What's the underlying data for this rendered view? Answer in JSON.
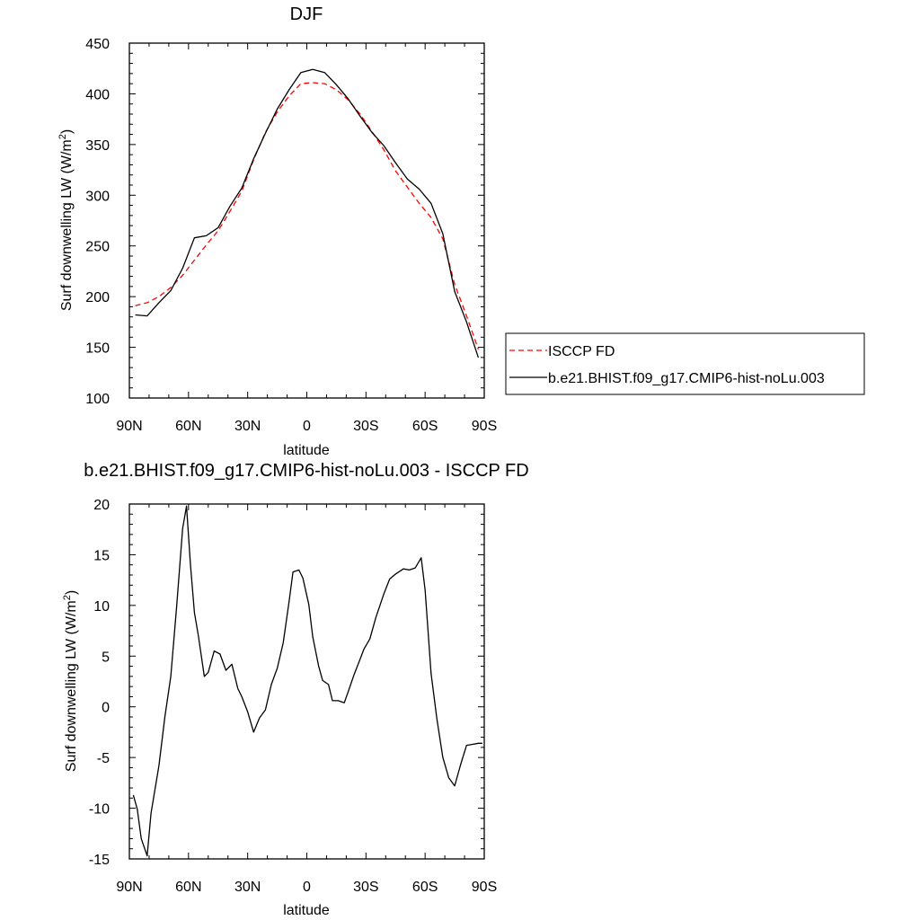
{
  "chart_data": [
    {
      "type": "line",
      "title": "DJF",
      "xlabel": "latitude",
      "ylabel": "Surf downwelling LW (W/m",
      "ylabel_sup": "2",
      "ylabel_close": ")",
      "xlim": [
        90,
        -90
      ],
      "ylim": [
        100,
        450
      ],
      "xticks": [
        {
          "value": 90,
          "label": "90N"
        },
        {
          "value": 60,
          "label": "60N"
        },
        {
          "value": 30,
          "label": "30N"
        },
        {
          "value": 0,
          "label": "0"
        },
        {
          "value": -30,
          "label": "30S"
        },
        {
          "value": -60,
          "label": "60S"
        },
        {
          "value": -90,
          "label": "90S"
        }
      ],
      "yticks": [
        100,
        150,
        200,
        250,
        300,
        350,
        400,
        450
      ],
      "legend_position": "right",
      "series": [
        {
          "name": "ISCCP FD",
          "color": "#ff0000",
          "style": "dashed",
          "x": [
            87,
            81,
            75,
            69,
            63,
            57,
            51,
            45,
            39,
            33,
            27,
            21,
            15,
            9,
            3,
            -3,
            -9,
            -15,
            -21,
            -27,
            -33,
            -39,
            -45,
            -51,
            -57,
            -63,
            -69,
            -75,
            -81,
            -87
          ],
          "y": [
            191,
            194,
            200,
            209,
            221,
            236,
            251,
            265,
            284,
            304,
            335,
            362,
            382,
            398,
            410,
            411,
            410,
            404,
            394,
            380,
            363,
            345,
            324,
            308,
            292,
            278,
            257,
            212,
            181,
            148
          ]
        },
        {
          "name": "b.e21.BHIST.f09_g17.CMIP6-hist-noLu.003",
          "color": "#000000",
          "style": "solid",
          "x": [
            87,
            81,
            75,
            69,
            63,
            57,
            51,
            45,
            39,
            33,
            27,
            21,
            15,
            9,
            3,
            -3,
            -9,
            -15,
            -21,
            -27,
            -33,
            -39,
            -45,
            -51,
            -57,
            -63,
            -69,
            -75,
            -81,
            -87
          ],
          "y": [
            182,
            181,
            194,
            206,
            228,
            258,
            260,
            268,
            289,
            307,
            336,
            361,
            385,
            404,
            421,
            424,
            421,
            409,
            395,
            378,
            362,
            349,
            332,
            316,
            306,
            292,
            262,
            205,
            175,
            140
          ]
        }
      ]
    },
    {
      "type": "line",
      "title": "b.e21.BHIST.f09_g17.CMIP6-hist-noLu.003 - ISCCP FD",
      "xlabel": "latitude",
      "ylabel": "Surf downwelling LW (W/m",
      "ylabel_sup": "2",
      "ylabel_close": ")",
      "xlim": [
        90,
        -90
      ],
      "ylim": [
        -15,
        20
      ],
      "xticks": [
        {
          "value": 90,
          "label": "90N"
        },
        {
          "value": 60,
          "label": "60N"
        },
        {
          "value": 30,
          "label": "30N"
        },
        {
          "value": 0,
          "label": "0"
        },
        {
          "value": -30,
          "label": "30S"
        },
        {
          "value": -60,
          "label": "60S"
        },
        {
          "value": -90,
          "label": "90S"
        }
      ],
      "yticks": [
        -15,
        -10,
        -5,
        0,
        5,
        10,
        15,
        20
      ],
      "series": [
        {
          "color": "#000000",
          "style": "solid",
          "x": [
            88,
            86,
            84,
            81,
            79,
            75,
            72,
            69,
            66,
            63,
            61,
            59,
            57,
            55,
            52,
            50,
            47,
            44,
            41,
            38,
            35,
            33,
            30,
            27,
            24,
            21,
            18,
            15,
            12,
            9,
            7,
            4,
            2,
            -1,
            -3,
            -6,
            -8,
            -11,
            -13,
            -16,
            -19,
            -21,
            -24,
            -27,
            -29,
            -32,
            -35,
            -39,
            -42,
            -45,
            -49,
            -52,
            -55,
            -58,
            -60,
            -63,
            -66,
            -69,
            -72,
            -75,
            -78,
            -81,
            -84,
            -87,
            -89
          ],
          "y": [
            -8.7,
            -10.1,
            -13,
            -14.7,
            -10.5,
            -5.8,
            -1,
            3,
            10,
            17.6,
            19.8,
            14,
            9.3,
            7,
            3,
            3.4,
            5.5,
            5.2,
            3.6,
            4.2,
            1.8,
            1,
            -0.5,
            -2.5,
            -1.1,
            -0.3,
            2.2,
            3.8,
            6.3,
            10.4,
            13.3,
            13.5,
            12.7,
            10.1,
            6.9,
            4,
            2.6,
            2.2,
            0.6,
            0.6,
            0.4,
            1.5,
            3.2,
            4.7,
            5.7,
            6.7,
            8.8,
            11.1,
            12.6,
            13.1,
            13.6,
            13.5,
            13.7,
            14.7,
            11.5,
            3.3,
            -1.2,
            -5,
            -7,
            -7.8,
            -5.7,
            -3.8,
            -3.7,
            -3.6,
            -3.6
          ]
        }
      ]
    }
  ]
}
